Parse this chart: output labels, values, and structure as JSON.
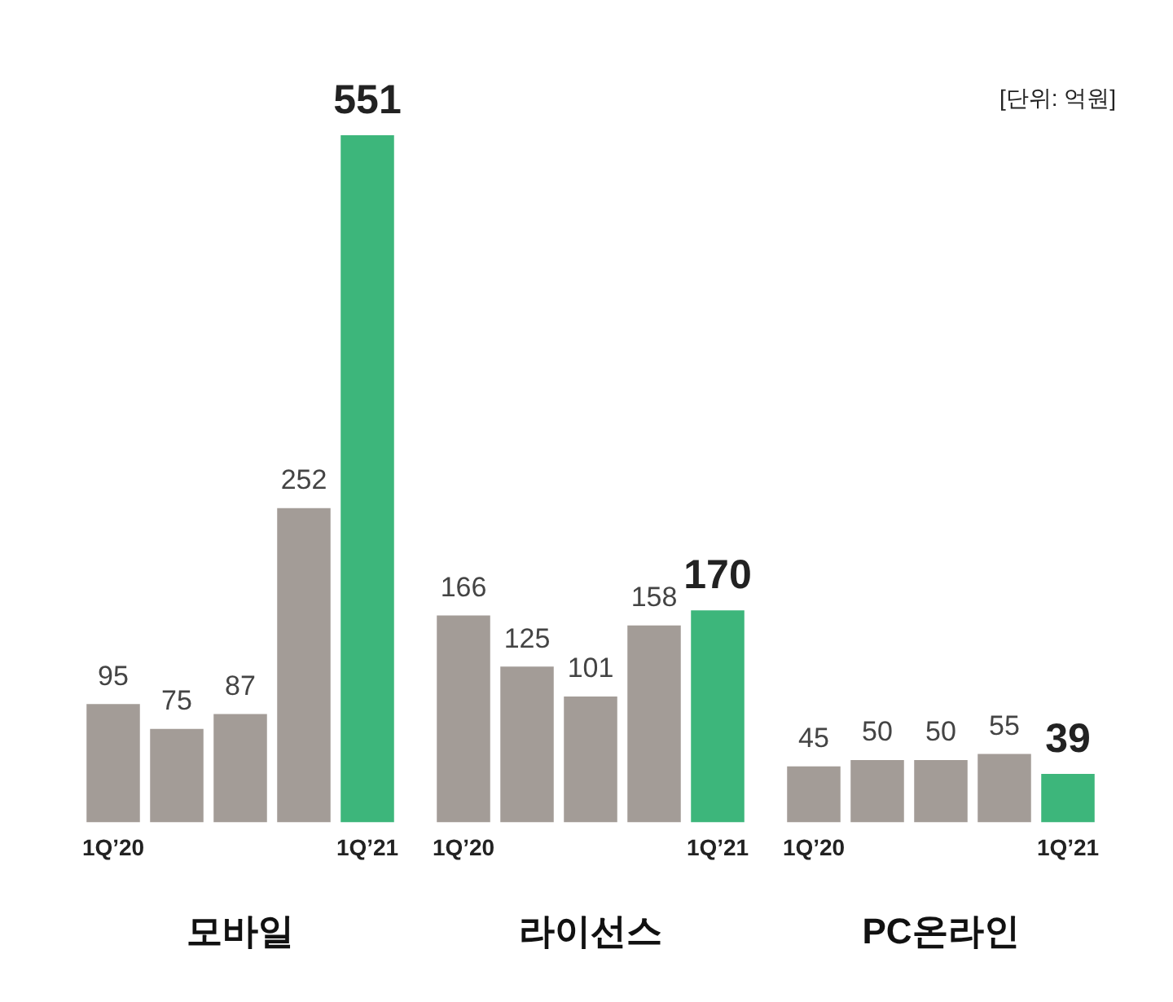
{
  "chart_data": [
    {
      "type": "bar",
      "xlabel": "모바일",
      "categories": [
        "1Q’20",
        null,
        null,
        null,
        "1Q’21"
      ],
      "values": [
        95,
        75,
        87,
        252,
        551
      ],
      "colors": [
        "#a39c97",
        "#a39c97",
        "#a39c97",
        "#a39c97",
        "#3db67b"
      ],
      "tick_labels": "x",
      "data_labels": true
    },
    {
      "type": "bar",
      "xlabel": "라이선스",
      "categories": [
        "1Q’20",
        null,
        null,
        null,
        "1Q’21"
      ],
      "values": [
        166,
        125,
        101,
        158,
        170
      ],
      "colors": [
        "#a39c97",
        "#a39c97",
        "#a39c97",
        "#a39c97",
        "#3db67b"
      ],
      "tick_labels": "x",
      "data_labels": true
    },
    {
      "type": "bar",
      "xlabel": "PC온라인",
      "categories": [
        "1Q’20",
        null,
        null,
        null,
        "1Q’21"
      ],
      "values": [
        45,
        50,
        50,
        55,
        39
      ],
      "colors": [
        "#a39c97",
        "#a39c97",
        "#a39c97",
        "#a39c97",
        "#3db67b"
      ],
      "tick_labels": "x",
      "data_labels": true,
      "annotations": [
        "[단위: 억원]"
      ]
    }
  ]
}
